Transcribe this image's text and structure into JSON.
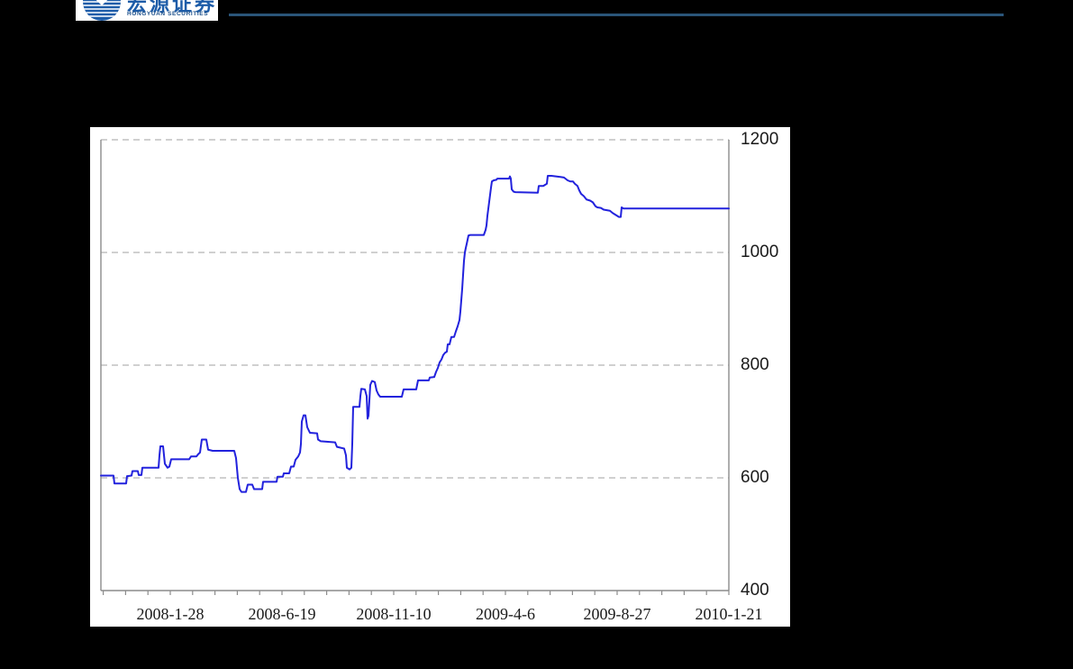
{
  "header": {
    "logo": {
      "chinese_name": "宏源证券",
      "english_name": "HONGYUAN SECURITIES"
    }
  },
  "chart_data": {
    "type": "line",
    "title": "",
    "xlabel": "",
    "ylabel": "",
    "ylim": [
      400,
      1200
    ],
    "y_ticks": [
      1200,
      1000,
      800,
      600,
      400
    ],
    "x_tick_labels": [
      "2008-1-28",
      "2008-6-19",
      "2008-11-10",
      "2009-4-6",
      "2009-8-27",
      "2010-1-21"
    ],
    "grid": {
      "style": "dashed-horizontal",
      "at_values": [
        1200,
        1000,
        800,
        600
      ]
    },
    "legend": "none",
    "colors": {
      "line": "#2222dd",
      "grid": "#b5b5b5",
      "axis": "#8c8c8c",
      "panel_bg": "#ffffff",
      "page_bg": "#000000",
      "header_rule": "#2a5579",
      "logo_blue": "#1d5ca8"
    },
    "series": [
      {
        "name": "price-index-line",
        "x_unit": "plot_x_px_0_to_697",
        "points": [
          [
            0,
            604
          ],
          [
            14,
            604
          ],
          [
            15,
            590
          ],
          [
            28,
            590
          ],
          [
            29,
            603
          ],
          [
            34,
            604
          ],
          [
            35,
            612
          ],
          [
            41,
            612
          ],
          [
            42,
            605
          ],
          [
            45,
            605
          ],
          [
            46,
            618
          ],
          [
            64,
            618
          ],
          [
            65,
            640
          ],
          [
            66,
            656
          ],
          [
            69,
            656
          ],
          [
            71,
            625
          ],
          [
            74,
            618
          ],
          [
            76,
            620
          ],
          [
            78,
            633
          ],
          [
            98,
            633
          ],
          [
            100,
            638
          ],
          [
            106,
            638
          ],
          [
            108,
            642
          ],
          [
            110,
            645
          ],
          [
            112,
            668
          ],
          [
            117,
            668
          ],
          [
            119,
            650
          ],
          [
            124,
            648
          ],
          [
            148,
            648
          ],
          [
            150,
            635
          ],
          [
            152,
            600
          ],
          [
            154,
            580
          ],
          [
            156,
            575
          ],
          [
            161,
            575
          ],
          [
            163,
            588
          ],
          [
            168,
            588
          ],
          [
            170,
            580
          ],
          [
            179,
            580
          ],
          [
            180,
            593
          ],
          [
            195,
            593
          ],
          [
            196,
            602
          ],
          [
            202,
            602
          ],
          [
            203,
            608
          ],
          [
            209,
            608
          ],
          [
            211,
            620
          ],
          [
            214,
            620
          ],
          [
            216,
            632
          ],
          [
            219,
            638
          ],
          [
            221,
            645
          ],
          [
            222,
            660
          ],
          [
            223,
            700
          ],
          [
            225,
            711
          ],
          [
            227,
            711
          ],
          [
            229,
            690
          ],
          [
            232,
            680
          ],
          [
            240,
            679
          ],
          [
            241,
            668
          ],
          [
            244,
            665
          ],
          [
            260,
            663
          ],
          [
            262,
            655
          ],
          [
            270,
            652
          ],
          [
            272,
            640
          ],
          [
            273,
            618
          ],
          [
            276,
            615
          ],
          [
            278,
            618
          ],
          [
            279,
            660
          ],
          [
            280,
            726
          ],
          [
            287,
            726
          ],
          [
            288,
            745
          ],
          [
            289,
            758
          ],
          [
            293,
            757
          ],
          [
            295,
            745
          ],
          [
            296,
            705
          ],
          [
            297,
            710
          ],
          [
            299,
            765
          ],
          [
            301,
            772
          ],
          [
            304,
            770
          ],
          [
            306,
            755
          ],
          [
            308,
            748
          ],
          [
            310,
            744
          ],
          [
            334,
            744
          ],
          [
            336,
            757
          ],
          [
            350,
            757
          ],
          [
            352,
            773
          ],
          [
            364,
            773
          ],
          [
            365,
            778
          ],
          [
            370,
            779
          ],
          [
            372,
            788
          ],
          [
            374,
            795
          ],
          [
            376,
            805
          ],
          [
            378,
            810
          ],
          [
            380,
            818
          ],
          [
            382,
            822
          ],
          [
            384,
            824
          ],
          [
            385,
            837
          ],
          [
            387,
            837
          ],
          [
            389,
            850
          ],
          [
            392,
            850
          ],
          [
            394,
            860
          ],
          [
            396,
            869
          ],
          [
            398,
            880
          ],
          [
            399,
            895
          ],
          [
            400,
            915
          ],
          [
            401,
            935
          ],
          [
            402,
            960
          ],
          [
            403,
            985
          ],
          [
            404,
            1000
          ],
          [
            405,
            1008
          ],
          [
            406,
            1015
          ],
          [
            408,
            1030
          ],
          [
            410,
            1031
          ],
          [
            425,
            1031
          ],
          [
            427,
            1040
          ],
          [
            428,
            1048
          ],
          [
            429,
            1065
          ],
          [
            431,
            1090
          ],
          [
            433,
            1115
          ],
          [
            434,
            1126
          ],
          [
            436,
            1128
          ],
          [
            439,
            1129
          ],
          [
            440,
            1131
          ],
          [
            453,
            1131
          ],
          [
            454,
            1135
          ],
          [
            455,
            1131
          ],
          [
            456,
            1112
          ],
          [
            458,
            1108
          ],
          [
            460,
            1107
          ],
          [
            485,
            1106
          ],
          [
            486,
            1118
          ],
          [
            491,
            1118
          ],
          [
            493,
            1120
          ],
          [
            495,
            1122
          ],
          [
            496,
            1136
          ],
          [
            500,
            1136
          ],
          [
            510,
            1134
          ],
          [
            514,
            1133
          ],
          [
            518,
            1128
          ],
          [
            521,
            1126
          ],
          [
            524,
            1126
          ],
          [
            526,
            1122
          ],
          [
            529,
            1118
          ],
          [
            531,
            1110
          ],
          [
            533,
            1104
          ],
          [
            536,
            1100
          ],
          [
            539,
            1094
          ],
          [
            543,
            1092
          ],
          [
            546,
            1089
          ],
          [
            549,
            1082
          ],
          [
            551,
            1080
          ],
          [
            555,
            1079
          ],
          [
            558,
            1076
          ],
          [
            565,
            1074
          ],
          [
            568,
            1070
          ],
          [
            570,
            1068
          ],
          [
            573,
            1065
          ],
          [
            575,
            1063
          ],
          [
            577,
            1063
          ],
          [
            578,
            1080
          ],
          [
            580,
            1078
          ],
          [
            697,
            1078
          ]
        ]
      }
    ]
  }
}
